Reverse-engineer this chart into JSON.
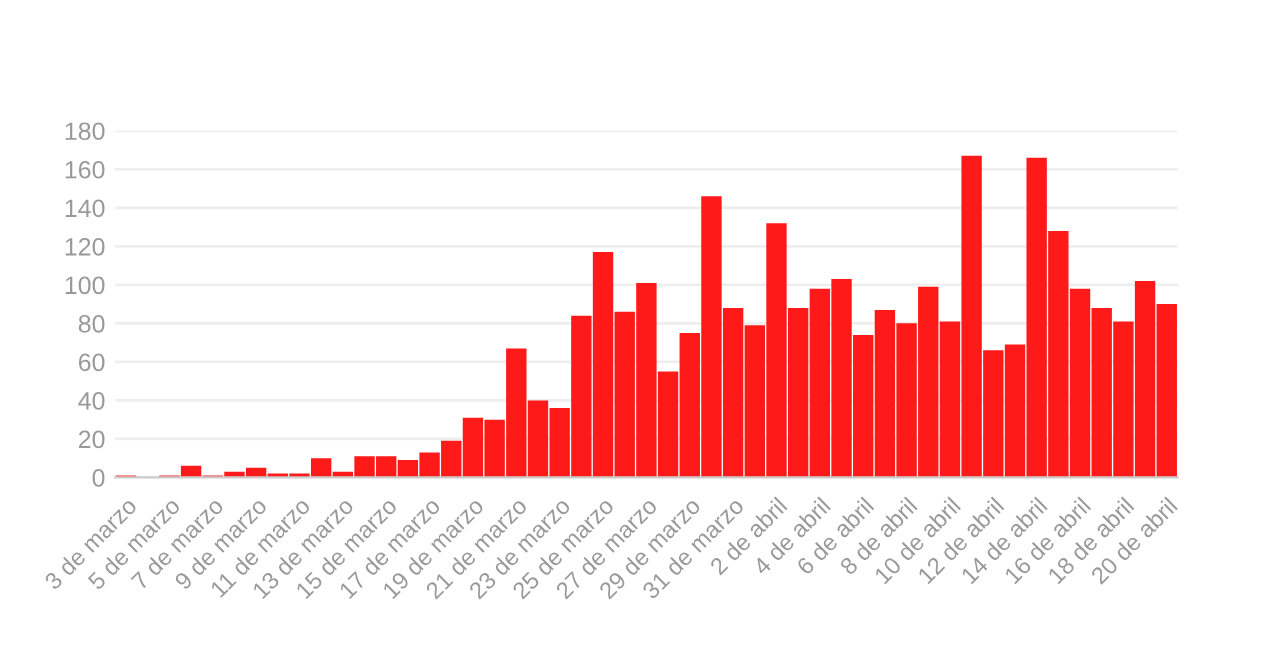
{
  "chart_data": {
    "type": "bar",
    "categories": [
      "3 de marzo",
      null,
      "5 de marzo",
      null,
      "7 de marzo",
      null,
      "9 de marzo",
      null,
      "11 de marzo",
      null,
      "13 de marzo",
      null,
      "15 de marzo",
      null,
      "17 de marzo",
      null,
      "19 de marzo",
      null,
      "21 de marzo",
      null,
      "23 de marzo",
      null,
      "25 de marzo",
      null,
      "27 de marzo",
      null,
      "29 de marzo",
      null,
      "31 de marzo",
      null,
      "2 de abril",
      null,
      "4 de abril",
      null,
      "6 de abril",
      null,
      "8 de abril",
      null,
      "10 de abril",
      null,
      "12 de abril",
      null,
      "14 de abril",
      null,
      "16 de abril",
      null,
      "18 de abril",
      null,
      "20 de abril"
    ],
    "values": [
      1,
      0,
      1,
      6,
      1,
      3,
      5,
      2,
      2,
      10,
      3,
      11,
      11,
      9,
      13,
      19,
      31,
      30,
      67,
      40,
      36,
      84,
      117,
      86,
      101,
      55,
      75,
      146,
      88,
      79,
      132,
      88,
      98,
      103,
      74,
      87,
      80,
      99,
      81,
      167,
      66,
      69,
      166,
      128,
      98,
      88,
      81,
      102,
      90
    ],
    "color": "#ff1a1a",
    "ylim": [
      0,
      180
    ],
    "yticks": [
      0,
      20,
      40,
      60,
      80,
      100,
      120,
      140,
      160,
      180
    ],
    "grid": "y"
  }
}
